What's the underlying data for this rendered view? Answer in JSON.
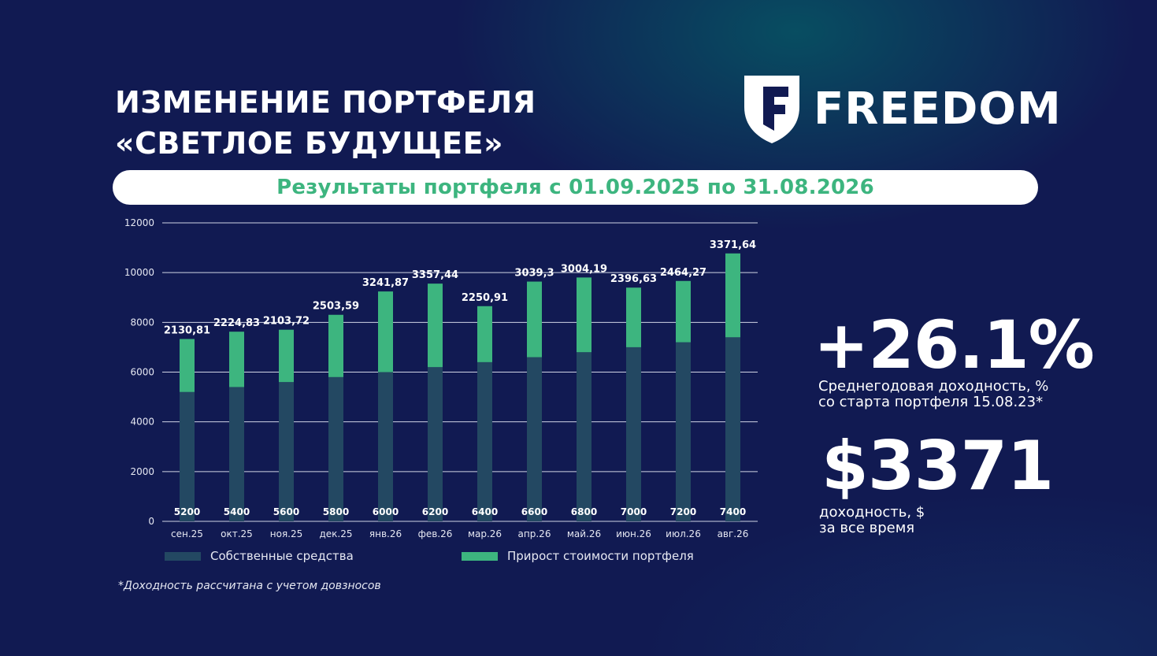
{
  "header": {
    "title_line1": "ИЗМЕНЕНИЕ ПОРТФЕЛЯ",
    "title_line2": "«СВЕТЛОЕ БУДУЩЕЕ»"
  },
  "brand": {
    "name": "FREEDOM",
    "icon": "freedom-shield-logo",
    "accent_color": "#3db57f"
  },
  "banner": {
    "text": "Результаты портфеля с 01.09.2025 по 31.08.2026"
  },
  "chart_data": {
    "type": "bar",
    "stacked": true,
    "categories": [
      "сен.25",
      "окт.25",
      "ноя.25",
      "дек.25",
      "янв.26",
      "фев.26",
      "мар.26",
      "апр.26",
      "май.26",
      "июн.26",
      "июл.26",
      "авг.26"
    ],
    "series": [
      {
        "name": "Собственные средства",
        "color": "#234862",
        "values": [
          5200,
          5400,
          5600,
          5800,
          6000,
          6200,
          6400,
          6600,
          6800,
          7000,
          7200,
          7400
        ],
        "labels": [
          "5200",
          "5400",
          "5600",
          "5800",
          "6000",
          "6200",
          "6400",
          "6600",
          "6800",
          "7000",
          "7200",
          "7400"
        ]
      },
      {
        "name": "Прирост стоимости портфеля",
        "color": "#3db57f",
        "values": [
          2130.81,
          2224.83,
          2103.72,
          2503.59,
          3241.87,
          3357.44,
          2250.91,
          3039.3,
          3004.19,
          2396.63,
          2464.27,
          3371.64
        ],
        "labels": [
          "2130,81",
          "2224,83",
          "2103,72",
          "2503,59",
          "3241,87",
          "3357,44",
          "2250,91",
          "3039,3",
          "3004,19",
          "2396,63",
          "2464,27",
          "3371,64"
        ]
      }
    ],
    "ylim": [
      0,
      12000
    ],
    "yticks": [
      0,
      2000,
      4000,
      6000,
      8000,
      10000,
      12000
    ],
    "grid": true,
    "legend_position": "bottom"
  },
  "stats": {
    "annual_return_value": "+26.1%",
    "annual_return_caption_line1": "Среднегодовая доходность, %",
    "annual_return_caption_line2": "со старта портфеля 15.08.23*",
    "total_return_value": "$3371",
    "total_return_caption_line1": "доходность, $",
    "total_return_caption_line2": "за все время"
  },
  "footnote": "*Доходность рассчитана с учетом довзносов"
}
